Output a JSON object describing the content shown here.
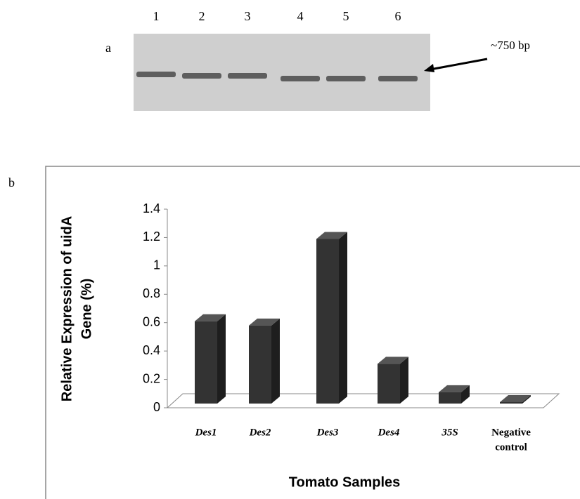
{
  "panel_a": {
    "label": "a",
    "lanes": [
      "1",
      "2",
      "3",
      "4",
      "5",
      "6"
    ],
    "band_label": "~750 bp"
  },
  "panel_b": {
    "label": "b"
  },
  "chart_data": {
    "type": "bar3d",
    "y_label": [
      "Relative Expression of uidA",
      "Gene  (%)"
    ],
    "x_label": "Tomato Samples",
    "categories": [
      "Des1",
      "Des2",
      "Des3",
      "Des4",
      "35S",
      [
        "Negative",
        "control"
      ]
    ],
    "values": [
      0.58,
      0.55,
      1.16,
      0.28,
      0.08,
      0.01
    ],
    "color": "#333333",
    "ylim": [
      0,
      1.4
    ],
    "yticks": [
      0,
      0.2,
      0.4,
      0.6,
      0.8,
      1,
      1.2,
      1.4
    ]
  }
}
